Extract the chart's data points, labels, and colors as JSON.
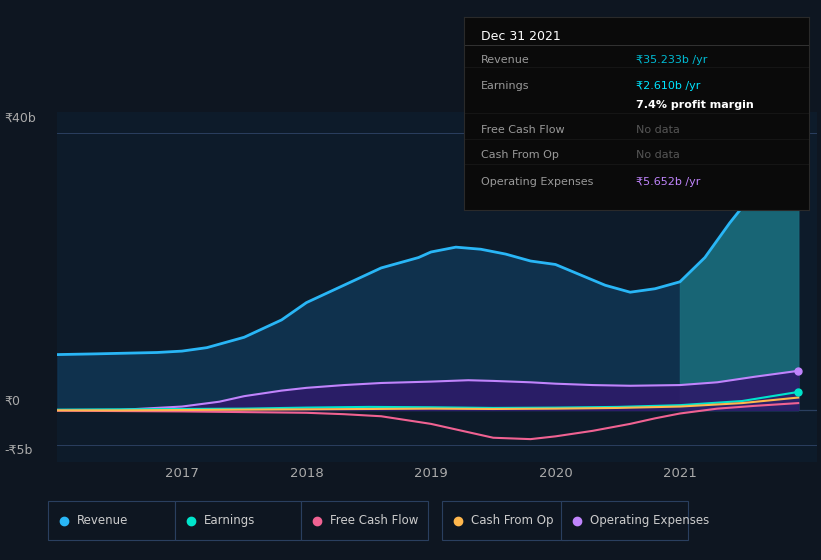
{
  "bg_color": "#0e1621",
  "plot_bg_color": "#0d1b2a",
  "grid_color": "#2a3f5f",
  "title_text": "Dec 31 2021",
  "tooltip": {
    "rows": [
      {
        "label": "Revenue",
        "value": "₹35.233b /yr",
        "value_color": "#00bcd4",
        "label_color": "#999999"
      },
      {
        "label": "Earnings",
        "value": "₹2.610b /yr",
        "value_color": "#00e5ff",
        "label_color": "#999999"
      },
      {
        "label": "",
        "value": "7.4% profit margin",
        "value_color": "#ffffff",
        "label_color": "#999999",
        "bold": true
      },
      {
        "label": "Free Cash Flow",
        "value": "No data",
        "value_color": "#555555",
        "label_color": "#999999"
      },
      {
        "label": "Cash From Op",
        "value": "No data",
        "value_color": "#555555",
        "label_color": "#999999"
      },
      {
        "label": "Operating Expenses",
        "value": "₹5.652b /yr",
        "value_color": "#c084fc",
        "label_color": "#999999"
      }
    ]
  },
  "ylabel_40b": "₹40b",
  "ylabel_0": "₹0",
  "ylabel_neg5b": "-₹5b",
  "x_ticks": [
    2017,
    2018,
    2019,
    2020,
    2021
  ],
  "x_range": [
    2016.0,
    2022.1
  ],
  "y_range": [
    -7.5,
    43
  ],
  "revenue": {
    "x": [
      2016.0,
      2016.3,
      2016.8,
      2017.0,
      2017.2,
      2017.5,
      2017.8,
      2018.0,
      2018.3,
      2018.6,
      2018.9,
      2019.0,
      2019.2,
      2019.4,
      2019.6,
      2019.8,
      2020.0,
      2020.2,
      2020.4,
      2020.6,
      2020.8,
      2021.0,
      2021.2,
      2021.4,
      2021.6,
      2021.8,
      2021.95
    ],
    "y": [
      8.0,
      8.1,
      8.3,
      8.5,
      9.0,
      10.5,
      13.0,
      15.5,
      18.0,
      20.5,
      22.0,
      22.8,
      23.5,
      23.2,
      22.5,
      21.5,
      21.0,
      19.5,
      18.0,
      17.0,
      17.5,
      18.5,
      22.0,
      27.0,
      31.5,
      34.0,
      35.233
    ],
    "color": "#29b6f6",
    "fill_color": "#103554",
    "fill_alpha": 0.85,
    "label": "Revenue"
  },
  "revenue_right_fill": {
    "color": "#1a6b7a",
    "alpha": 0.9
  },
  "earnings": {
    "x": [
      2016.0,
      2016.5,
      2017.0,
      2017.5,
      2018.0,
      2018.5,
      2019.0,
      2019.5,
      2020.0,
      2020.5,
      2021.0,
      2021.5,
      2021.95
    ],
    "y": [
      0.05,
      0.1,
      0.15,
      0.2,
      0.35,
      0.45,
      0.4,
      0.3,
      0.35,
      0.45,
      0.7,
      1.3,
      2.61
    ],
    "color": "#00e5cc",
    "label": "Earnings"
  },
  "free_cash_flow": {
    "x": [
      2016.0,
      2016.5,
      2017.0,
      2017.5,
      2018.0,
      2018.3,
      2018.6,
      2019.0,
      2019.3,
      2019.5,
      2019.8,
      2020.0,
      2020.3,
      2020.6,
      2020.8,
      2021.0,
      2021.3,
      2021.6,
      2021.95
    ],
    "y": [
      -0.1,
      -0.15,
      -0.2,
      -0.3,
      -0.4,
      -0.6,
      -0.9,
      -2.0,
      -3.2,
      -4.0,
      -4.2,
      -3.8,
      -3.0,
      -2.0,
      -1.2,
      -0.5,
      0.2,
      0.6,
      1.0
    ],
    "color": "#f06292",
    "label": "Free Cash Flow"
  },
  "cash_from_op": {
    "x": [
      2016.0,
      2016.5,
      2017.0,
      2017.5,
      2018.0,
      2018.5,
      2019.0,
      2019.5,
      2020.0,
      2020.5,
      2021.0,
      2021.5,
      2021.95
    ],
    "y": [
      -0.05,
      -0.05,
      0.0,
      0.05,
      0.1,
      0.15,
      0.2,
      0.15,
      0.2,
      0.3,
      0.5,
      1.0,
      1.8
    ],
    "color": "#ffb74d",
    "label": "Cash From Op"
  },
  "operating_expenses": {
    "x": [
      2016.0,
      2016.5,
      2017.0,
      2017.3,
      2017.5,
      2017.8,
      2018.0,
      2018.3,
      2018.6,
      2019.0,
      2019.3,
      2019.5,
      2019.8,
      2020.0,
      2020.3,
      2020.6,
      2021.0,
      2021.3,
      2021.6,
      2021.95
    ],
    "y": [
      0.0,
      0.02,
      0.5,
      1.2,
      2.0,
      2.8,
      3.2,
      3.6,
      3.9,
      4.1,
      4.3,
      4.2,
      4.0,
      3.8,
      3.6,
      3.5,
      3.6,
      4.0,
      4.8,
      5.652
    ],
    "color": "#c084fc",
    "fill_color": "#2d1b69",
    "fill_alpha": 0.9,
    "label": "Operating Expenses"
  },
  "legend_items": [
    {
      "label": "Revenue",
      "color": "#29b6f6"
    },
    {
      "label": "Earnings",
      "color": "#00e5cc"
    },
    {
      "label": "Free Cash Flow",
      "color": "#f06292"
    },
    {
      "label": "Cash From Op",
      "color": "#ffb74d"
    },
    {
      "label": "Operating Expenses",
      "color": "#c084fc"
    }
  ]
}
